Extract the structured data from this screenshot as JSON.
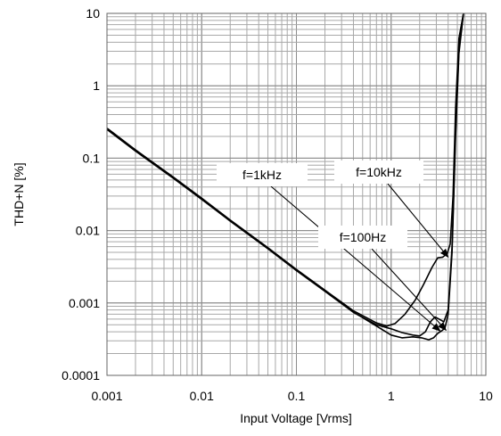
{
  "chart_data": {
    "type": "line",
    "xscale": "log",
    "yscale": "log",
    "xlim": [
      0.001,
      10
    ],
    "ylim": [
      0.0001,
      10
    ],
    "xlabel": "Input Voltage [Vrms]",
    "ylabel": "THD+N [%]",
    "x_ticks": [
      "0.001",
      "0.01",
      "0.1",
      "1",
      "10"
    ],
    "y_ticks": [
      "0.0001",
      "0.001",
      "0.01",
      "0.1",
      "1",
      "10"
    ],
    "grid": true,
    "legend": "none",
    "series": [
      {
        "x": [
          0.001,
          0.002,
          0.005,
          0.01,
          0.02,
          0.05,
          0.1,
          0.2,
          0.4,
          0.7,
          1.0,
          1.3,
          1.7,
          2.1,
          2.5,
          2.8,
          3.1,
          3.4,
          3.7,
          4.0,
          4.4,
          4.8,
          5.2,
          5.8
        ],
        "y": [
          0.25,
          0.13,
          0.055,
          0.028,
          0.014,
          0.0058,
          0.0029,
          0.0015,
          0.00075,
          0.00048,
          0.00036,
          0.00033,
          0.00034,
          0.00033,
          0.00031,
          0.00033,
          0.00038,
          0.00041,
          0.00045,
          0.0007,
          0.005,
          0.2,
          2.8,
          10
        ]
      },
      {
        "x": [
          0.001,
          0.002,
          0.005,
          0.01,
          0.02,
          0.05,
          0.1,
          0.2,
          0.4,
          0.7,
          1.0,
          1.3,
          1.7,
          2.0,
          2.3,
          2.6,
          2.9,
          3.2,
          3.6,
          4.0,
          4.4,
          4.8,
          5.2,
          5.8
        ],
        "y": [
          0.26,
          0.13,
          0.054,
          0.027,
          0.0135,
          0.0056,
          0.0028,
          0.00145,
          0.00074,
          0.0005,
          0.00044,
          0.00039,
          0.00036,
          0.00035,
          0.0004,
          0.00055,
          0.00064,
          0.0006,
          0.00055,
          0.0008,
          0.006,
          0.25,
          3.2,
          10
        ]
      },
      {
        "x": [
          0.001,
          0.002,
          0.005,
          0.01,
          0.02,
          0.05,
          0.1,
          0.2,
          0.4,
          0.7,
          0.9,
          1.1,
          1.4,
          1.8,
          2.2,
          2.7,
          3.1,
          3.5,
          3.9,
          4.2,
          4.5,
          4.8,
          5.2,
          5.8
        ],
        "y": [
          0.25,
          0.125,
          0.053,
          0.027,
          0.0138,
          0.0057,
          0.0029,
          0.0015,
          0.00078,
          0.00053,
          0.00048,
          0.00052,
          0.0007,
          0.0011,
          0.0018,
          0.0031,
          0.0042,
          0.0043,
          0.0048,
          0.0065,
          0.03,
          0.5,
          4.5,
          10
        ]
      }
    ],
    "annotations": [
      {
        "text": "f=1kHz",
        "target": [
          3.3,
          0.00041
        ]
      },
      {
        "text": "f=100Hz",
        "target": [
          3.8,
          0.00042
        ]
      },
      {
        "text": "f=10kHz",
        "target": [
          4.0,
          0.0043
        ]
      }
    ]
  }
}
